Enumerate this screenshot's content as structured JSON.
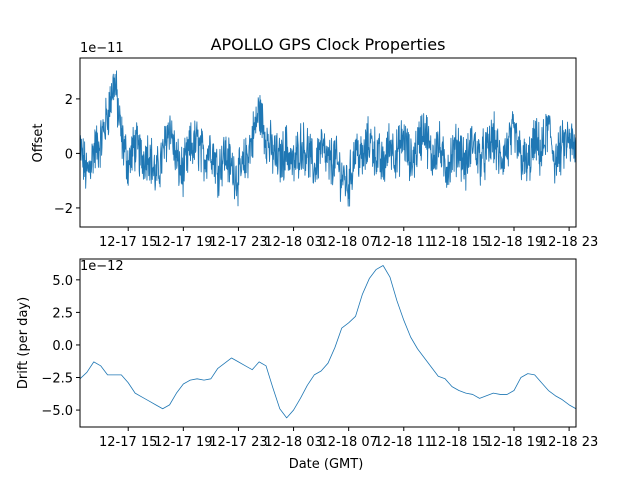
{
  "chart_data": [
    {
      "type": "line",
      "title": "APOLLO GPS Clock Properties",
      "xlabel": "",
      "ylabel": "Offset",
      "scale_exponent": "1e−11",
      "xlim": [
        "2024-12-17 11:30",
        "2024-12-18 23:30"
      ],
      "ylim": [
        -2.7,
        3.5
      ],
      "yticks": [
        -2,
        0,
        2
      ],
      "ytick_labels": [
        "−2",
        "0",
        "2"
      ],
      "xticks": [
        "2024-12-17 15:00",
        "2024-12-17 19:00",
        "2024-12-17 23:00",
        "2024-12-18 03:00",
        "2024-12-18 07:00",
        "2024-12-18 11:00",
        "2024-12-18 15:00",
        "2024-12-18 19:00",
        "2024-12-18 23:00"
      ],
      "xtick_labels": [
        "12-17 15",
        "12-17 19",
        "12-17 23",
        "12-18 03",
        "12-18 07",
        "12-18 11",
        "12-18 15",
        "12-18 19",
        "12-18 23"
      ],
      "grid": false,
      "color": "#1f77b4",
      "series": [
        {
          "x": [
            "2024-12-17 11:30",
            "2024-12-17 12:00",
            "2024-12-17 12:30",
            "2024-12-17 13:00",
            "2024-12-17 13:30",
            "2024-12-17 14:00",
            "2024-12-17 14:30",
            "2024-12-17 15:00",
            "2024-12-17 15:30",
            "2024-12-17 16:00",
            "2024-12-17 16:30",
            "2024-12-17 17:00",
            "2024-12-17 17:30",
            "2024-12-17 18:00",
            "2024-12-17 18:30",
            "2024-12-17 19:00",
            "2024-12-17 19:30",
            "2024-12-17 20:00",
            "2024-12-17 20:30",
            "2024-12-17 21:00",
            "2024-12-17 21:30",
            "2024-12-17 22:00",
            "2024-12-17 22:30",
            "2024-12-17 23:00",
            "2024-12-17 23:30",
            "2024-12-18 00:00",
            "2024-12-18 00:30",
            "2024-12-18 01:00",
            "2024-12-18 01:30",
            "2024-12-18 02:00",
            "2024-12-18 02:30",
            "2024-12-18 03:00",
            "2024-12-18 03:30",
            "2024-12-18 04:00",
            "2024-12-18 04:30",
            "2024-12-18 05:00",
            "2024-12-18 05:30",
            "2024-12-18 06:00",
            "2024-12-18 06:30",
            "2024-12-18 07:00",
            "2024-12-18 07:30",
            "2024-12-18 08:00",
            "2024-12-18 08:30",
            "2024-12-18 09:00",
            "2024-12-18 09:30",
            "2024-12-18 10:00",
            "2024-12-18 10:30",
            "2024-12-18 11:00",
            "2024-12-18 11:30",
            "2024-12-18 12:00",
            "2024-12-18 12:30",
            "2024-12-18 13:00",
            "2024-12-18 13:30",
            "2024-12-18 14:00",
            "2024-12-18 14:30",
            "2024-12-18 15:00",
            "2024-12-18 15:30",
            "2024-12-18 16:00",
            "2024-12-18 16:30",
            "2024-12-18 17:00",
            "2024-12-18 17:30",
            "2024-12-18 18:00",
            "2024-12-18 18:30",
            "2024-12-18 19:00",
            "2024-12-18 19:30",
            "2024-12-18 20:00",
            "2024-12-18 20:30",
            "2024-12-18 21:00",
            "2024-12-18 21:30",
            "2024-12-18 22:00",
            "2024-12-18 22:30",
            "2024-12-18 23:00",
            "2024-12-18 23:30"
          ],
          "y": [
            0.2,
            -0.8,
            0.1,
            0.4,
            1.4,
            2.7,
            0.6,
            -0.4,
            0.3,
            -0.2,
            0.1,
            -0.9,
            -0.1,
            1.1,
            -0.3,
            -0.7,
            0.2,
            0.4,
            -0.2,
            0.3,
            -0.6,
            0.0,
            -0.5,
            -0.9,
            -0.3,
            0.5,
            1.6,
            0.6,
            0.0,
            -0.3,
            0.2,
            -0.5,
            0.3,
            0.1,
            -0.6,
            0.3,
            -0.4,
            -0.2,
            -0.8,
            -1.2,
            0.2,
            -0.3,
            0.5,
            0.0,
            -0.5,
            0.4,
            -0.1,
            0.6,
            -0.4,
            0.3,
            1.0,
            -0.2,
            0.4,
            -0.6,
            -0.1,
            0.3,
            -0.5,
            0.5,
            -0.2,
            0.0,
            0.6,
            -0.3,
            0.2,
            0.7,
            -0.1,
            -0.5,
            0.4,
            0.0,
            1.0,
            -0.3,
            0.2,
            0.5,
            0.0
          ]
        }
      ]
    },
    {
      "type": "line",
      "title": "",
      "xlabel": "Date (GMT)",
      "ylabel": "Drift (per day)",
      "scale_exponent": "1e−12",
      "xlim": [
        "2024-12-17 11:30",
        "2024-12-18 23:30"
      ],
      "ylim": [
        -6.3,
        6.6
      ],
      "yticks": [
        -5.0,
        -2.5,
        0.0,
        2.5,
        5.0
      ],
      "ytick_labels": [
        "−5.0",
        "−2.5",
        "0.0",
        "2.5",
        "5.0"
      ],
      "xticks": [
        "2024-12-17 15:00",
        "2024-12-17 19:00",
        "2024-12-17 23:00",
        "2024-12-18 03:00",
        "2024-12-18 07:00",
        "2024-12-18 11:00",
        "2024-12-18 15:00",
        "2024-12-18 19:00",
        "2024-12-18 23:00"
      ],
      "xtick_labels": [
        "12-17 15",
        "12-17 19",
        "12-17 23",
        "12-18 03",
        "12-18 07",
        "12-18 11",
        "12-18 15",
        "12-18 19",
        "12-18 23"
      ],
      "grid": false,
      "color": "#1f77b4",
      "series": [
        {
          "x": [
            "2024-12-17 11:30",
            "2024-12-17 12:00",
            "2024-12-17 12:30",
            "2024-12-17 13:00",
            "2024-12-17 13:30",
            "2024-12-17 14:00",
            "2024-12-17 14:30",
            "2024-12-17 15:00",
            "2024-12-17 15:30",
            "2024-12-17 16:00",
            "2024-12-17 16:30",
            "2024-12-17 17:00",
            "2024-12-17 17:30",
            "2024-12-17 18:00",
            "2024-12-17 18:30",
            "2024-12-17 19:00",
            "2024-12-17 19:30",
            "2024-12-17 20:00",
            "2024-12-17 20:30",
            "2024-12-17 21:00",
            "2024-12-17 21:30",
            "2024-12-17 22:00",
            "2024-12-17 22:30",
            "2024-12-17 23:00",
            "2024-12-17 23:30",
            "2024-12-18 00:00",
            "2024-12-18 00:30",
            "2024-12-18 01:00",
            "2024-12-18 01:30",
            "2024-12-18 02:00",
            "2024-12-18 02:30",
            "2024-12-18 03:00",
            "2024-12-18 03:30",
            "2024-12-18 04:00",
            "2024-12-18 04:30",
            "2024-12-18 05:00",
            "2024-12-18 05:30",
            "2024-12-18 06:00",
            "2024-12-18 06:30",
            "2024-12-18 07:00",
            "2024-12-18 07:30",
            "2024-12-18 08:00",
            "2024-12-18 08:30",
            "2024-12-18 09:00",
            "2024-12-18 09:30",
            "2024-12-18 10:00",
            "2024-12-18 10:30",
            "2024-12-18 11:00",
            "2024-12-18 11:30",
            "2024-12-18 12:00",
            "2024-12-18 12:30",
            "2024-12-18 13:00",
            "2024-12-18 13:30",
            "2024-12-18 14:00",
            "2024-12-18 14:30",
            "2024-12-18 15:00",
            "2024-12-18 15:30",
            "2024-12-18 16:00",
            "2024-12-18 16:30",
            "2024-12-18 17:00",
            "2024-12-18 17:30",
            "2024-12-18 18:00",
            "2024-12-18 18:30",
            "2024-12-18 19:00",
            "2024-12-18 19:30",
            "2024-12-18 20:00",
            "2024-12-18 20:30",
            "2024-12-18 21:00",
            "2024-12-18 21:30",
            "2024-12-18 22:00",
            "2024-12-18 22:30",
            "2024-12-18 23:00",
            "2024-12-18 23:30"
          ],
          "y": [
            -2.6,
            -2.1,
            -1.3,
            -1.6,
            -2.3,
            -2.3,
            -2.3,
            -2.9,
            -3.7,
            -4.0,
            -4.3,
            -4.6,
            -4.9,
            -4.6,
            -3.7,
            -3.0,
            -2.7,
            -2.6,
            -2.7,
            -2.6,
            -1.8,
            -1.4,
            -1.0,
            -1.3,
            -1.6,
            -1.9,
            -1.3,
            -1.6,
            -3.3,
            -4.9,
            -5.6,
            -5.0,
            -4.1,
            -3.1,
            -2.3,
            -2.0,
            -1.4,
            -0.2,
            1.3,
            1.7,
            2.2,
            3.9,
            5.1,
            5.8,
            6.1,
            5.2,
            3.4,
            1.9,
            0.6,
            -0.3,
            -1.0,
            -1.7,
            -2.4,
            -2.6,
            -3.2,
            -3.5,
            -3.7,
            -3.8,
            -4.1,
            -3.9,
            -3.7,
            -3.8,
            -3.8,
            -3.5,
            -2.5,
            -2.2,
            -2.3,
            -2.9,
            -3.5,
            -3.9,
            -4.2,
            -4.6,
            -4.9
          ]
        }
      ]
    }
  ]
}
